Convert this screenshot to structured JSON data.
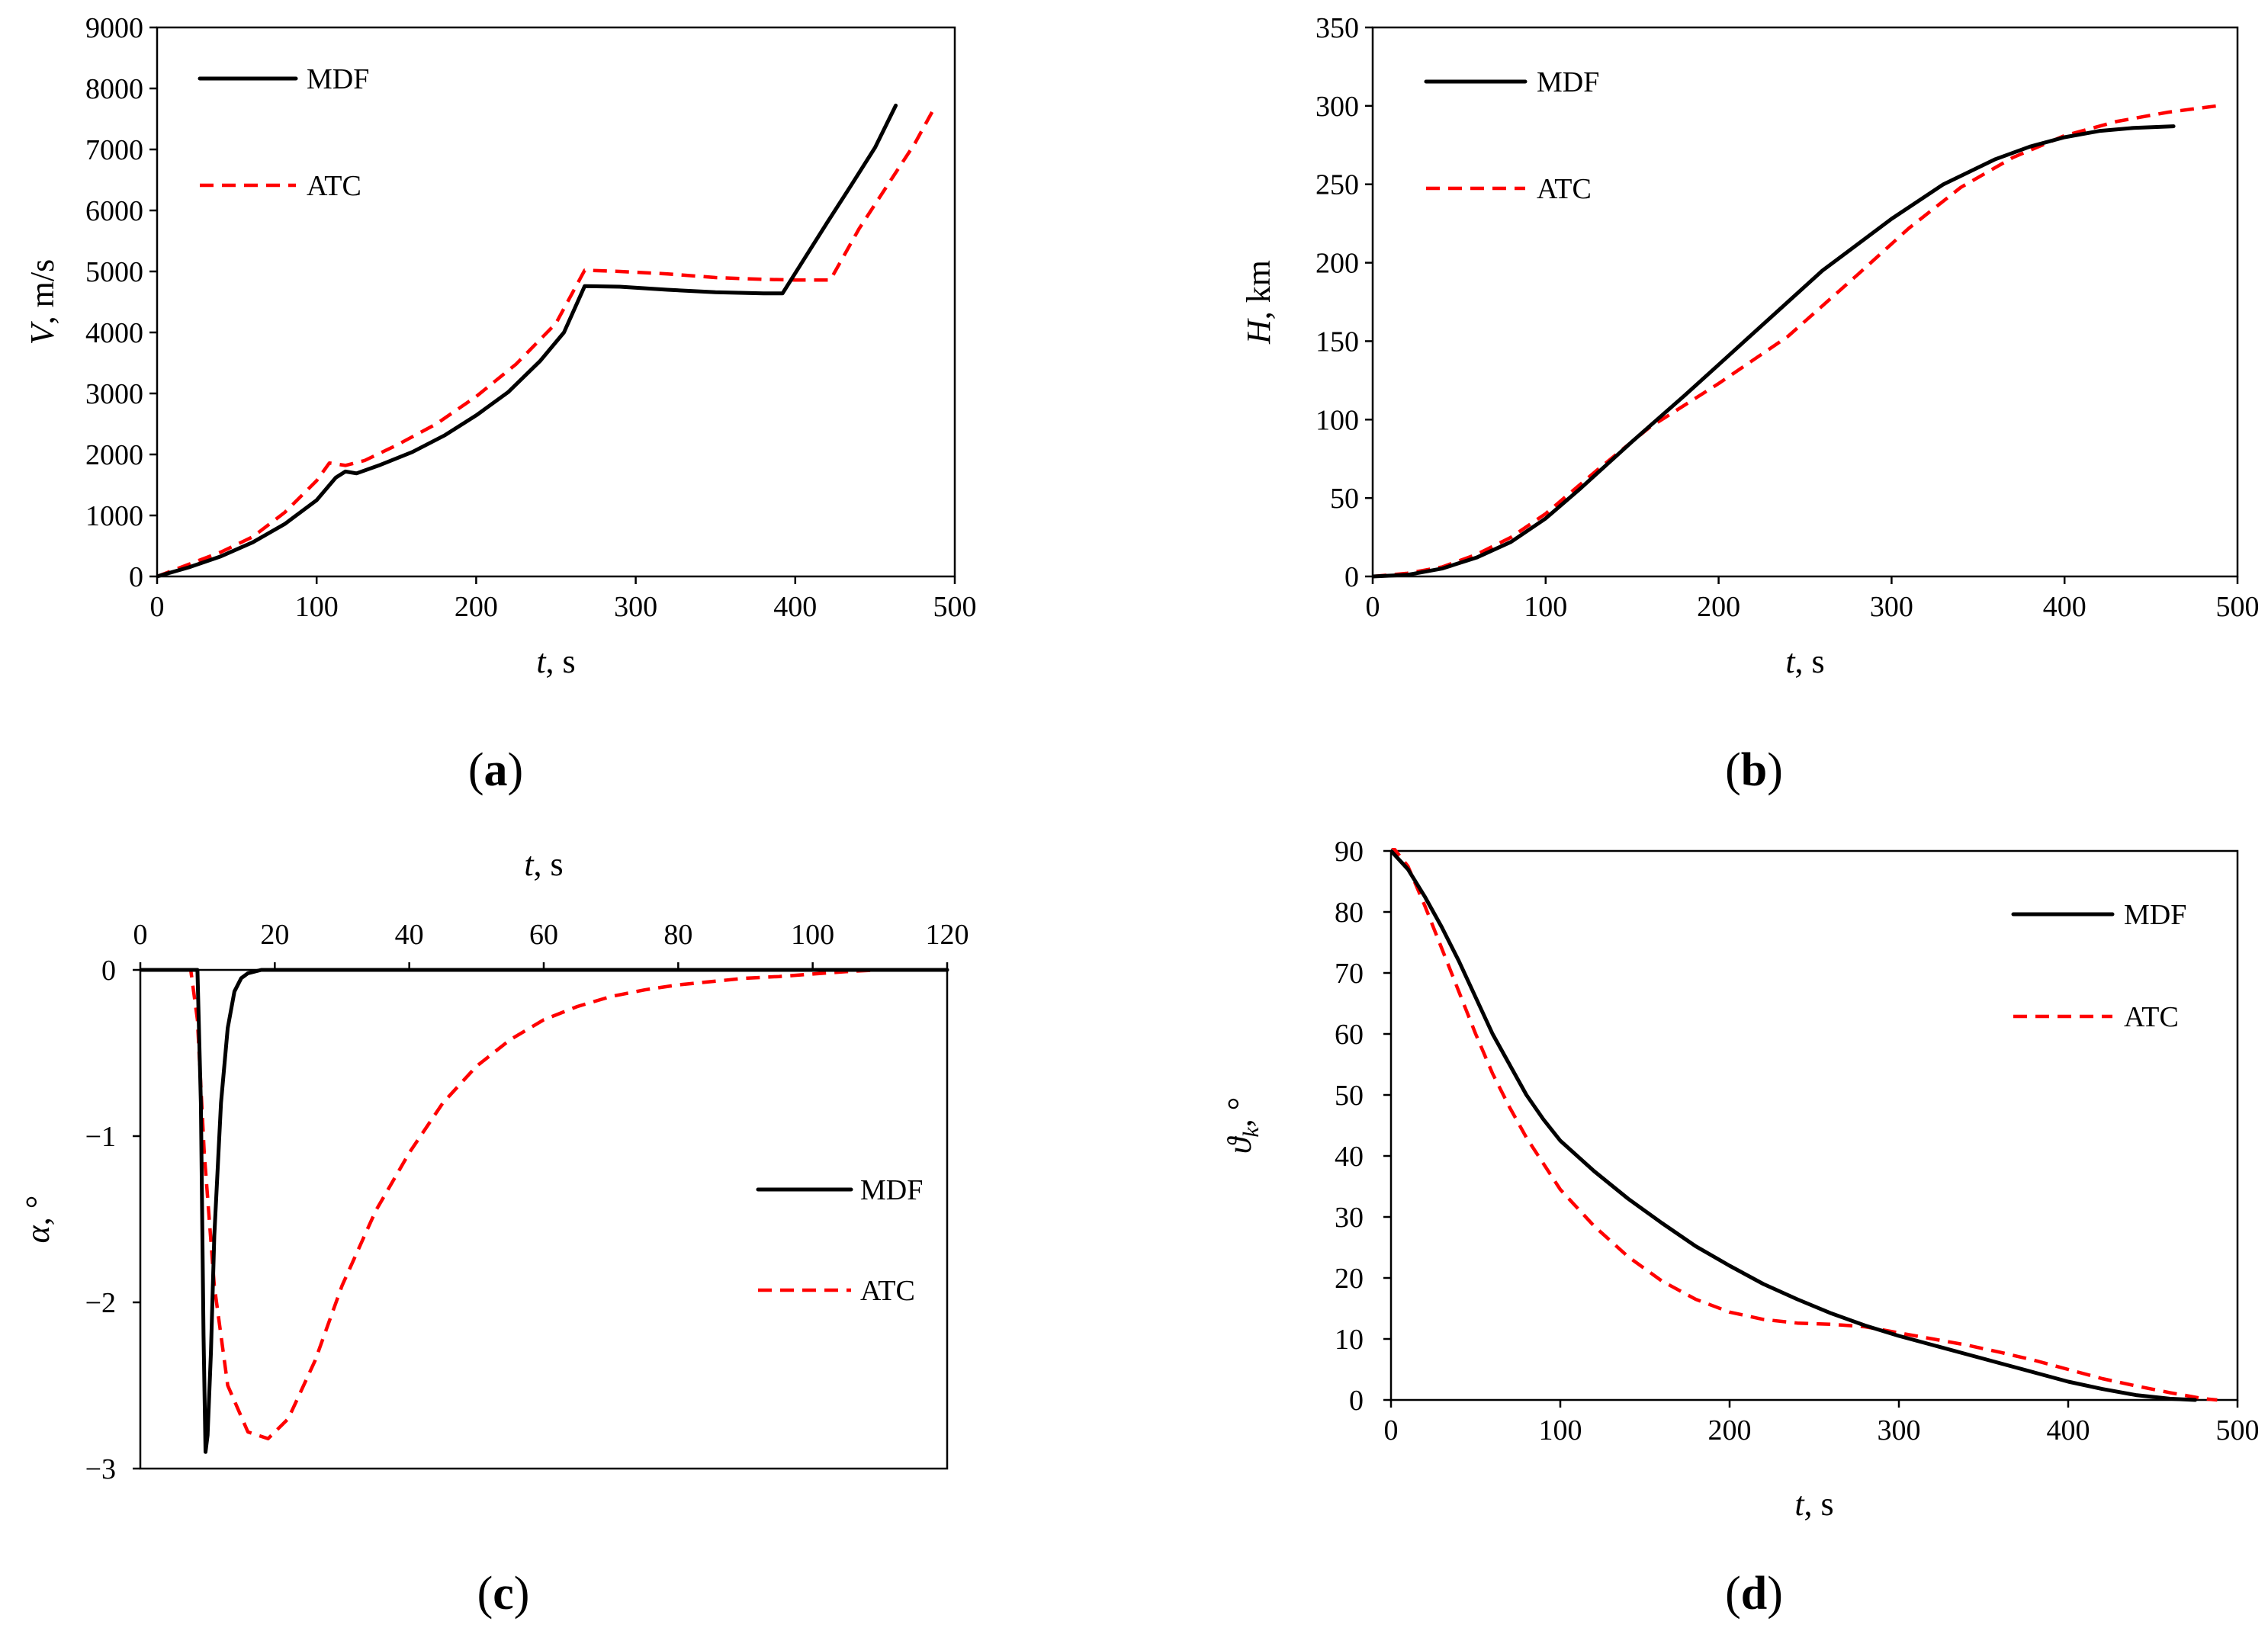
{
  "colors": {
    "mdf": "#000000",
    "atc": "#ff0000"
  },
  "chart_data": [
    {
      "id": "a",
      "type": "line",
      "panel_label": "a",
      "xlabel": {
        "var": "t",
        "unit": ", s"
      },
      "ylabel": {
        "var": "V",
        "unit": ", m/s"
      },
      "xlim": [
        0,
        500
      ],
      "ylim": [
        0,
        9000
      ],
      "xticks": [
        "0",
        "100",
        "200",
        "300",
        "400",
        "500"
      ],
      "yticks": [
        "0",
        "1000",
        "2000",
        "3000",
        "4000",
        "5000",
        "6000",
        "7000",
        "8000",
        "9000"
      ],
      "legend_position": "top-left",
      "series": [
        {
          "name": "MDF",
          "x": [
            0,
            20,
            40,
            60,
            80,
            100,
            112,
            118,
            125,
            140,
            160,
            180,
            200,
            220,
            240,
            255,
            268,
            290,
            320,
            350,
            380,
            392,
            405,
            420,
            435,
            450,
            463
          ],
          "y": [
            0,
            150,
            330,
            560,
            860,
            1250,
            1620,
            1720,
            1690,
            1830,
            2040,
            2310,
            2640,
            3020,
            3530,
            4000,
            4760,
            4750,
            4700,
            4660,
            4640,
            4640,
            5180,
            5800,
            6410,
            7030,
            7720
          ]
        },
        {
          "name": "ATC",
          "x": [
            0,
            20,
            40,
            60,
            80,
            100,
            108,
            118,
            130,
            150,
            175,
            200,
            225,
            250,
            268,
            290,
            320,
            350,
            380,
            400,
            422,
            440,
            460,
            475,
            488
          ],
          "y": [
            0,
            200,
            400,
            650,
            1050,
            1570,
            1860,
            1820,
            1900,
            2150,
            2500,
            2950,
            3480,
            4150,
            5020,
            5000,
            4960,
            4900,
            4870,
            4860,
            4860,
            5700,
            6500,
            7100,
            7720
          ]
        }
      ]
    },
    {
      "id": "b",
      "type": "line",
      "panel_label": "b",
      "xlabel": {
        "var": "t",
        "unit": ", s"
      },
      "ylabel": {
        "var": "H",
        "unit": ", km"
      },
      "xlim": [
        0,
        500
      ],
      "ylim": [
        0,
        350
      ],
      "xticks": [
        "0",
        "100",
        "200",
        "300",
        "400",
        "500"
      ],
      "yticks": [
        "0",
        "50",
        "100",
        "150",
        "200",
        "250",
        "300",
        "350"
      ],
      "legend_position": "top-left",
      "series": [
        {
          "name": "MDF",
          "x": [
            0,
            20,
            40,
            60,
            80,
            100,
            120,
            150,
            180,
            200,
            230,
            260,
            300,
            330,
            360,
            380,
            400,
            420,
            440,
            463
          ],
          "y": [
            0,
            1,
            5,
            12,
            22,
            37,
            56,
            86,
            115,
            135,
            165,
            195,
            228,
            250,
            266,
            274,
            280,
            284,
            286,
            287
          ]
        },
        {
          "name": "ATC",
          "x": [
            0,
            20,
            40,
            60,
            80,
            100,
            130,
            160,
            200,
            240,
            280,
            310,
            340,
            370,
            400,
            430,
            460,
            488
          ],
          "y": [
            0,
            2,
            6,
            14,
            25,
            40,
            68,
            95,
            123,
            153,
            192,
            222,
            248,
            267,
            281,
            290,
            296,
            300
          ]
        }
      ]
    },
    {
      "id": "c",
      "type": "line",
      "panel_label": "c",
      "xlabel": {
        "var": "t",
        "unit": ", s"
      },
      "ylabel": {
        "var": "α",
        "unit": ", °"
      },
      "xlim": [
        0,
        120
      ],
      "ylim": [
        -3,
        0
      ],
      "xticks": [
        "0",
        "20",
        "40",
        "60",
        "80",
        "100",
        "120"
      ],
      "yticks": [
        "0",
        "−1",
        "−2",
        "−3"
      ],
      "x_axis_position": "top",
      "legend_position": "right",
      "series": [
        {
          "name": "MDF",
          "x": [
            0,
            8.5,
            9,
            9.4,
            9.7,
            10,
            10.5,
            11,
            12,
            13,
            14,
            15,
            16,
            17,
            18,
            20,
            120
          ],
          "y": [
            0,
            0,
            -0.8,
            -2.2,
            -2.9,
            -2.8,
            -2.3,
            -1.6,
            -0.8,
            -0.35,
            -0.13,
            -0.05,
            -0.02,
            -0.01,
            0,
            0,
            0
          ]
        },
        {
          "name": "ATC",
          "x": [
            0,
            7.5,
            8.5,
            9.5,
            11,
            13,
            16,
            19,
            22,
            26,
            30,
            35,
            40,
            45,
            50,
            55,
            60,
            65,
            70,
            75,
            80,
            85,
            90,
            95,
            100,
            105,
            110,
            120
          ],
          "y": [
            0,
            0,
            -0.3,
            -1.1,
            -1.9,
            -2.5,
            -2.78,
            -2.82,
            -2.7,
            -2.35,
            -1.9,
            -1.45,
            -1.1,
            -0.8,
            -0.58,
            -0.42,
            -0.3,
            -0.22,
            -0.16,
            -0.12,
            -0.09,
            -0.07,
            -0.05,
            -0.04,
            -0.025,
            -0.01,
            0,
            0
          ]
        }
      ]
    },
    {
      "id": "d",
      "type": "line",
      "panel_label": "d",
      "xlabel": {
        "var": "t",
        "unit": ", s"
      },
      "ylabel": {
        "var": "ϑ",
        "sub": "k",
        "unit": ", °"
      },
      "xlim": [
        0,
        500
      ],
      "ylim": [
        0,
        90
      ],
      "xticks": [
        "0",
        "100",
        "200",
        "300",
        "400",
        "500"
      ],
      "yticks": [
        "0",
        "10",
        "20",
        "30",
        "40",
        "50",
        "60",
        "70",
        "80",
        "90"
      ],
      "legend_position": "top-right",
      "series": [
        {
          "name": "MDF",
          "x": [
            0,
            10,
            20,
            30,
            40,
            50,
            60,
            70,
            80,
            90,
            100,
            120,
            140,
            160,
            180,
            200,
            220,
            240,
            260,
            280,
            300,
            320,
            340,
            360,
            380,
            400,
            420,
            440,
            460,
            475
          ],
          "y": [
            90,
            87,
            82.5,
            77.5,
            72,
            66,
            60,
            55,
            50,
            46,
            42.5,
            37.5,
            33,
            29,
            25.2,
            22,
            19,
            16.5,
            14.2,
            12.2,
            10.5,
            9,
            7.5,
            6,
            4.5,
            3,
            1.8,
            0.8,
            0.2,
            0
          ]
        },
        {
          "name": "ATC",
          "x": [
            0,
            10,
            20,
            30,
            40,
            50,
            60,
            70,
            80,
            100,
            120,
            140,
            160,
            180,
            200,
            220,
            240,
            260,
            280,
            300,
            320,
            340,
            360,
            380,
            400,
            420,
            440,
            460,
            480,
            488
          ],
          "y": [
            91,
            87.5,
            81,
            74,
            67,
            60,
            53.5,
            48,
            43,
            34.5,
            28.5,
            23.5,
            19.5,
            16.5,
            14.4,
            13.2,
            12.6,
            12.4,
            12,
            11,
            10,
            9,
            7.8,
            6.5,
            5,
            3.5,
            2.3,
            1.2,
            0.2,
            0
          ]
        }
      ]
    }
  ]
}
